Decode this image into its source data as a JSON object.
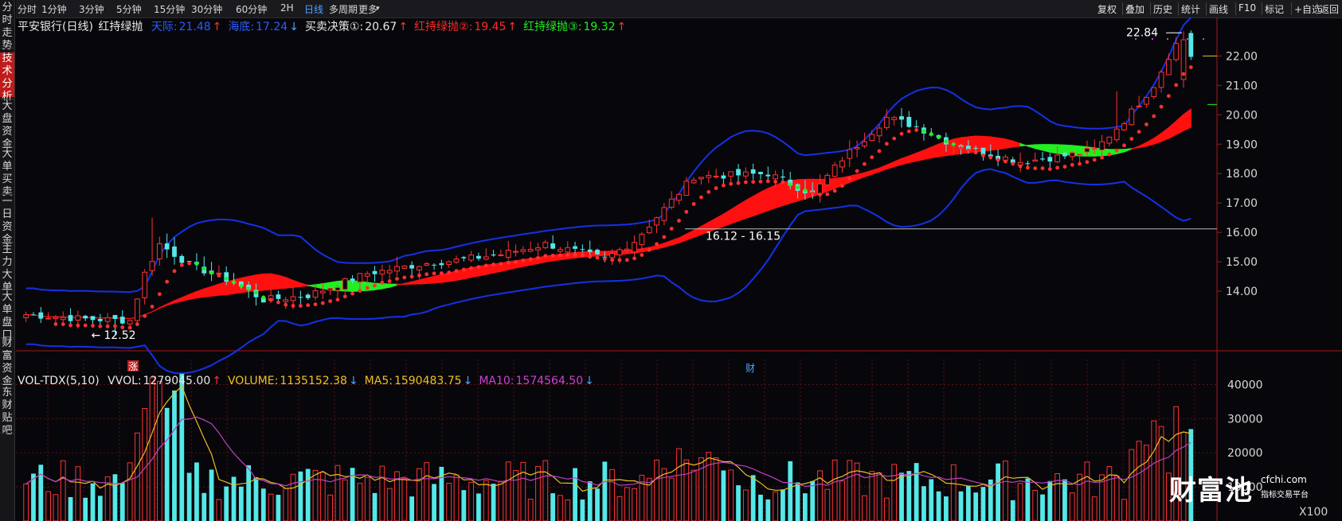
{
  "timeframes": [
    "分时",
    "1分钟",
    "3分钟",
    "5分钟",
    "15分钟",
    "30分钟",
    "60分钟",
    "2H",
    "日线",
    "多周期",
    "更多"
  ],
  "active_timeframe": "日线",
  "more_arrow": "▾",
  "right_buttons": [
    "复权",
    "叠加",
    "历史",
    "统计",
    "画线",
    "F10",
    "标记",
    "+自选",
    "返回"
  ],
  "sidebar_tabs": [
    "分时走势",
    "技术分析",
    "大盘资金",
    "大单买卖",
    "一日资金",
    "主力大单",
    "大单盘口",
    "财富资金",
    "东财贴吧"
  ],
  "active_sidebar": "技术分析",
  "indicator": {
    "stock": "平安银行(日线)",
    "name": "红持绿抛",
    "items": [
      {
        "label": "天际:",
        "value": "21.48",
        "arrow": "↑",
        "color": "#2a5cff"
      },
      {
        "label": "海底:",
        "value": "17.24",
        "arrow": "↓",
        "color": "#2a5cff"
      },
      {
        "label": "买卖决策①:",
        "value": "20.67",
        "arrow": "↑",
        "color": "#e8e8e8"
      },
      {
        "label": "红持绿抛②:",
        "value": "19.45",
        "arrow": "↑",
        "color": "#ff2a2a"
      },
      {
        "label": "红持绿抛③:",
        "value": "19.32",
        "arrow": "↑",
        "color": "#22ee22"
      }
    ]
  },
  "volume_indicator": {
    "name": "VOL-TDX(5,10)",
    "items": [
      {
        "label": "VVOL:",
        "value": "1279045.00",
        "arrow": "↑",
        "color": "#e8e8e8"
      },
      {
        "label": "VOLUME:",
        "value": "1135152.38",
        "arrow": "↓",
        "color": "#f0c020"
      },
      {
        "label": "MA5:",
        "value": "1590483.75",
        "arrow": "↓",
        "color": "#f0c020"
      },
      {
        "label": "MA10:",
        "value": "1574564.50",
        "arrow": "↓",
        "color": "#d040d0"
      }
    ]
  },
  "price_axis": {
    "ticks": [
      "22.00",
      "21.00",
      "20.00",
      "19.00",
      "18.00",
      "17.00",
      "16.00",
      "15.00",
      "14.00"
    ]
  },
  "volume_axis": {
    "ticks": [
      "40000",
      "30000",
      "20000",
      "10000"
    ],
    "unit": "X100"
  },
  "annotations": {
    "high": "22.84",
    "low": "12.52",
    "low_arrow": "←",
    "range": "16.12 - 16.15",
    "badge_zhang": "涨",
    "badge_cai": "财",
    "hline_price": "16.12"
  },
  "chart_data": {
    "type": "candlestick",
    "price_range": [
      12.0,
      23.2
    ],
    "volume_range": [
      0,
      45000
    ],
    "colors": {
      "up": "#ff3232",
      "down": "#54e8e8",
      "sky": "#1530e8",
      "sea": "#1530e8",
      "ribbon_up": "#ff1010",
      "ribbon_down": "#22ee22",
      "dots_up": "#ff3030",
      "dots_down": "#22ee22",
      "ma5": "#e8c020",
      "ma10": "#c040c0"
    },
    "anchors": [
      [
        0,
        13.2
      ],
      [
        8,
        13.05
      ],
      [
        14,
        13.0
      ],
      [
        16,
        14.6
      ],
      [
        18,
        15.6
      ],
      [
        22,
        14.9
      ],
      [
        28,
        14.3
      ],
      [
        32,
        13.7
      ],
      [
        38,
        13.85
      ],
      [
        46,
        14.6
      ],
      [
        54,
        14.95
      ],
      [
        58,
        15.05
      ],
      [
        64,
        15.25
      ],
      [
        70,
        15.6
      ],
      [
        74,
        15.35
      ],
      [
        78,
        15.1
      ],
      [
        82,
        15.7
      ],
      [
        86,
        16.8
      ],
      [
        90,
        17.9
      ],
      [
        96,
        17.95
      ],
      [
        100,
        18.0
      ],
      [
        106,
        17.3
      ],
      [
        110,
        18.5
      ],
      [
        116,
        19.9
      ],
      [
        120,
        19.6
      ],
      [
        124,
        19.1
      ],
      [
        128,
        18.8
      ],
      [
        134,
        18.4
      ],
      [
        140,
        18.6
      ],
      [
        144,
        18.8
      ],
      [
        148,
        19.8
      ],
      [
        152,
        21.0
      ],
      [
        154,
        22.0
      ],
      [
        156,
        22.8
      ],
      [
        157,
        22.0
      ]
    ],
    "bar_count": 158,
    "high_index": 156,
    "low_index": 12
  },
  "watermark": {
    "brand": "财富池",
    "url": "cfchi.com",
    "tag": "指标交易平台"
  }
}
